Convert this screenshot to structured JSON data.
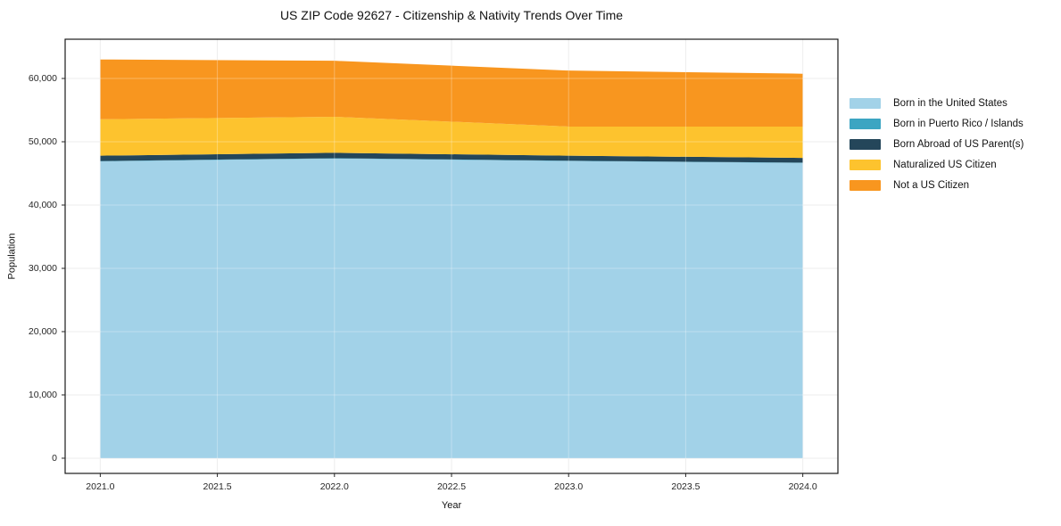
{
  "window": {
    "background": "#ffffff"
  },
  "chart_data": {
    "type": "area",
    "stacked": true,
    "title": "US ZIP Code 92627 - Citizenship & Nativity Trends Over Time",
    "xlabel": "Year",
    "ylabel": "Population",
    "x": [
      2021,
      2022,
      2023,
      2024
    ],
    "series": [
      {
        "name": "Born in the United States",
        "color": "#A2D2E8",
        "values": [
          46900,
          47350,
          46950,
          46650
        ]
      },
      {
        "name": "Born in Puerto Rico / Islands",
        "color": "#3CA5C2",
        "values": [
          50,
          50,
          50,
          50
        ]
      },
      {
        "name": "Born Abroad of US Parent(s)",
        "color": "#24465A",
        "values": [
          850,
          850,
          800,
          750
        ]
      },
      {
        "name": "Naturalized US Citizen",
        "color": "#FDC32E",
        "values": [
          5750,
          5700,
          4600,
          4950
        ]
      },
      {
        "name": "Not a US Citizen",
        "color": "#F8961F",
        "values": [
          9450,
          8850,
          8850,
          8350
        ]
      }
    ],
    "totals": [
      63000,
      62800,
      61250,
      60700
    ],
    "xlim": [
      2020.85,
      2024.15
    ],
    "ylim": [
      -2400,
      66200
    ],
    "xticks": {
      "values": [
        2021.0,
        2021.5,
        2022.0,
        2022.5,
        2023.0,
        2023.5,
        2024.0
      ],
      "labels": [
        "2021.0",
        "2021.5",
        "2022.0",
        "2022.5",
        "2023.0",
        "2023.5",
        "2024.0"
      ]
    },
    "yticks": {
      "values": [
        0,
        10000,
        20000,
        30000,
        40000,
        50000,
        60000
      ],
      "labels": [
        "0",
        "10,000",
        "20,000",
        "30,000",
        "40,000",
        "50,000",
        "60,000"
      ]
    },
    "grid": true,
    "grid_color": "#e7e7e7",
    "grid_overlay_color": "rgba(255,255,255,0.30)",
    "spine_color": "#1a1a1a",
    "tick_color": "#262626",
    "legend_position": "right-outside"
  }
}
